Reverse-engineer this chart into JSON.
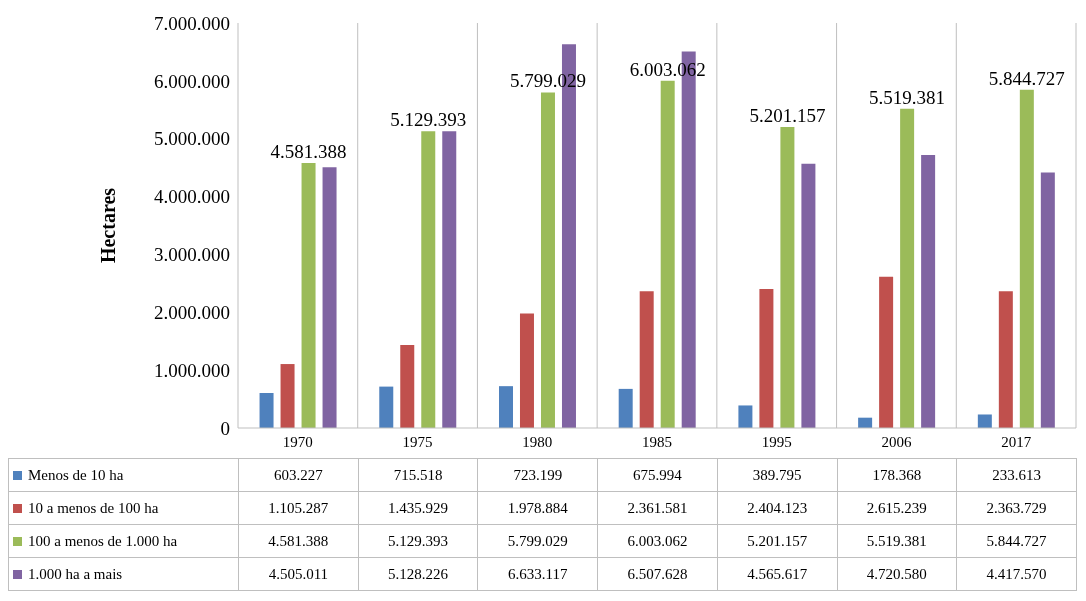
{
  "chart_data": {
    "type": "bar",
    "ylabel": "Hectares",
    "categories": [
      "1970",
      "1975",
      "1980",
      "1985",
      "1995",
      "2006",
      "2017"
    ],
    "series": [
      {
        "name": "Menos de 10 ha",
        "color": "#4f81bd",
        "values": [
          603227,
          715518,
          723199,
          675994,
          389795,
          178368,
          233613
        ],
        "value_labels": [
          "603.227",
          "715.518",
          "723.199",
          "675.994",
          "389.795",
          "178.368",
          "233.613"
        ]
      },
      {
        "name": "10 a menos de 100 ha",
        "color": "#c0504d",
        "values": [
          1105287,
          1435929,
          1978884,
          2361581,
          2404123,
          2615239,
          2363729
        ],
        "value_labels": [
          "1.105.287",
          "1.435.929",
          "1.978.884",
          "2.361.581",
          "2.404.123",
          "2.615.239",
          "2.363.729"
        ]
      },
      {
        "name": "100 a menos de 1.000 ha",
        "color": "#9bbb59",
        "values": [
          4581388,
          5129393,
          5799029,
          6003062,
          5201157,
          5519381,
          5844727
        ],
        "value_labels": [
          "4.581.388",
          "5.129.393",
          "5.799.029",
          "6.003.062",
          "5.201.157",
          "5.519.381",
          "5.844.727"
        ],
        "data_labels": true
      },
      {
        "name": "1.000 ha a mais",
        "color": "#8064a2",
        "values": [
          4505011,
          5128226,
          6633117,
          6507628,
          4565617,
          4720580,
          4417570
        ],
        "value_labels": [
          "4.505.011",
          "5.128.226",
          "6.633.117",
          "6.507.628",
          "4.565.617",
          "4.720.580",
          "4.417.570"
        ]
      }
    ],
    "ylim": [
      0,
      7000000
    ],
    "yticks": [
      {
        "value": 0,
        "label": "0"
      },
      {
        "value": 1000000,
        "label": "1.000.000"
      },
      {
        "value": 2000000,
        "label": "2.000.000"
      },
      {
        "value": 3000000,
        "label": "3.000.000"
      },
      {
        "value": 4000000,
        "label": "4.000.000"
      },
      {
        "value": 5000000,
        "label": "5.000.000"
      },
      {
        "value": 6000000,
        "label": "6.000.000"
      },
      {
        "value": 7000000,
        "label": "7.000.000"
      }
    ],
    "grid": "x",
    "legend": "bottom"
  }
}
